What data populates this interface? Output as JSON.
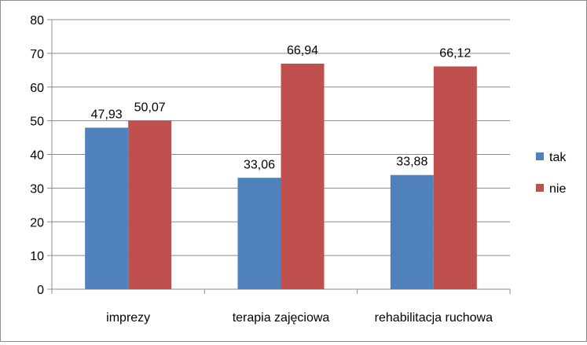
{
  "chart_data": {
    "type": "bar",
    "categories": [
      "imprezy",
      "terapia zajęciowa",
      "rehabilitacja ruchowa"
    ],
    "series": [
      {
        "name": "tak",
        "values": [
          47.93,
          33.06,
          33.88
        ],
        "value_labels": [
          "47,93",
          "33,06",
          "33,88"
        ],
        "color": "#4f81bd"
      },
      {
        "name": "nie",
        "values": [
          50.07,
          66.94,
          66.12
        ],
        "value_labels": [
          "50,07",
          "66,94",
          "66,12"
        ],
        "color": "#c0504d"
      }
    ],
    "ylim": [
      0,
      80
    ],
    "yticks": [
      0,
      10,
      20,
      30,
      40,
      50,
      60,
      70,
      80
    ],
    "grid": true,
    "legend_position": "right"
  }
}
